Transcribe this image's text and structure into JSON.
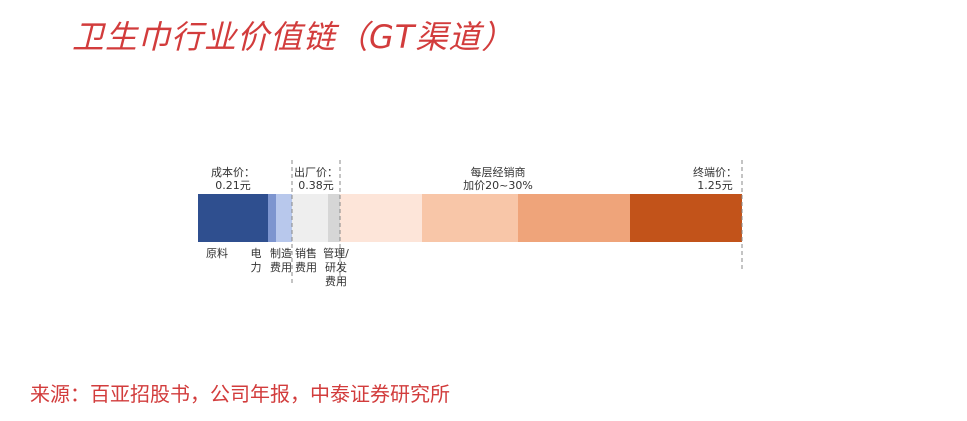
{
  "title": "卫生巾行业价值链（GT渠道）",
  "source": "来源：百亚招股书，公司年报，中泰证券研究所",
  "chart_data": {
    "type": "bar",
    "orientation": "horizontal-stacked",
    "title": "卫生巾行业价值链（GT渠道）",
    "segments": [
      {
        "name": "原料",
        "color": "#2f4f8f"
      },
      {
        "name": "电力费用",
        "color": "#7d95cf"
      },
      {
        "name": "制造费用",
        "color": "#b8c8ec"
      },
      {
        "name": "销售费用",
        "color": "#eeeeee"
      },
      {
        "name": "管理/研发费用",
        "color": "#d6d6d6"
      },
      {
        "name": "",
        "color": "#fde5d9"
      },
      {
        "name": "",
        "color": "#f8c6a8"
      },
      {
        "name": "",
        "color": "#efa47a"
      },
      {
        "name": "",
        "color": "#c2531a"
      }
    ],
    "segment_labels": [
      {
        "lines": [
          "原料"
        ]
      },
      {
        "lines": [
          "电",
          "力"
        ]
      },
      {
        "lines": [
          "制造",
          "费用"
        ]
      },
      {
        "lines": [
          "销售",
          "费用"
        ]
      },
      {
        "lines": [
          "管理/",
          "研发",
          "费用"
        ]
      }
    ],
    "price_points": [
      {
        "lines": [
          "成本价：",
          "0.21元"
        ],
        "value": 0.21
      },
      {
        "lines": [
          "出厂价：",
          "0.38元"
        ],
        "value": 0.38
      },
      {
        "lines": [
          "终端价：",
          "1.25元"
        ],
        "value": 1.25
      }
    ],
    "distributor_note": {
      "lines": [
        "每层经销商",
        "加价20~30%"
      ]
    }
  }
}
